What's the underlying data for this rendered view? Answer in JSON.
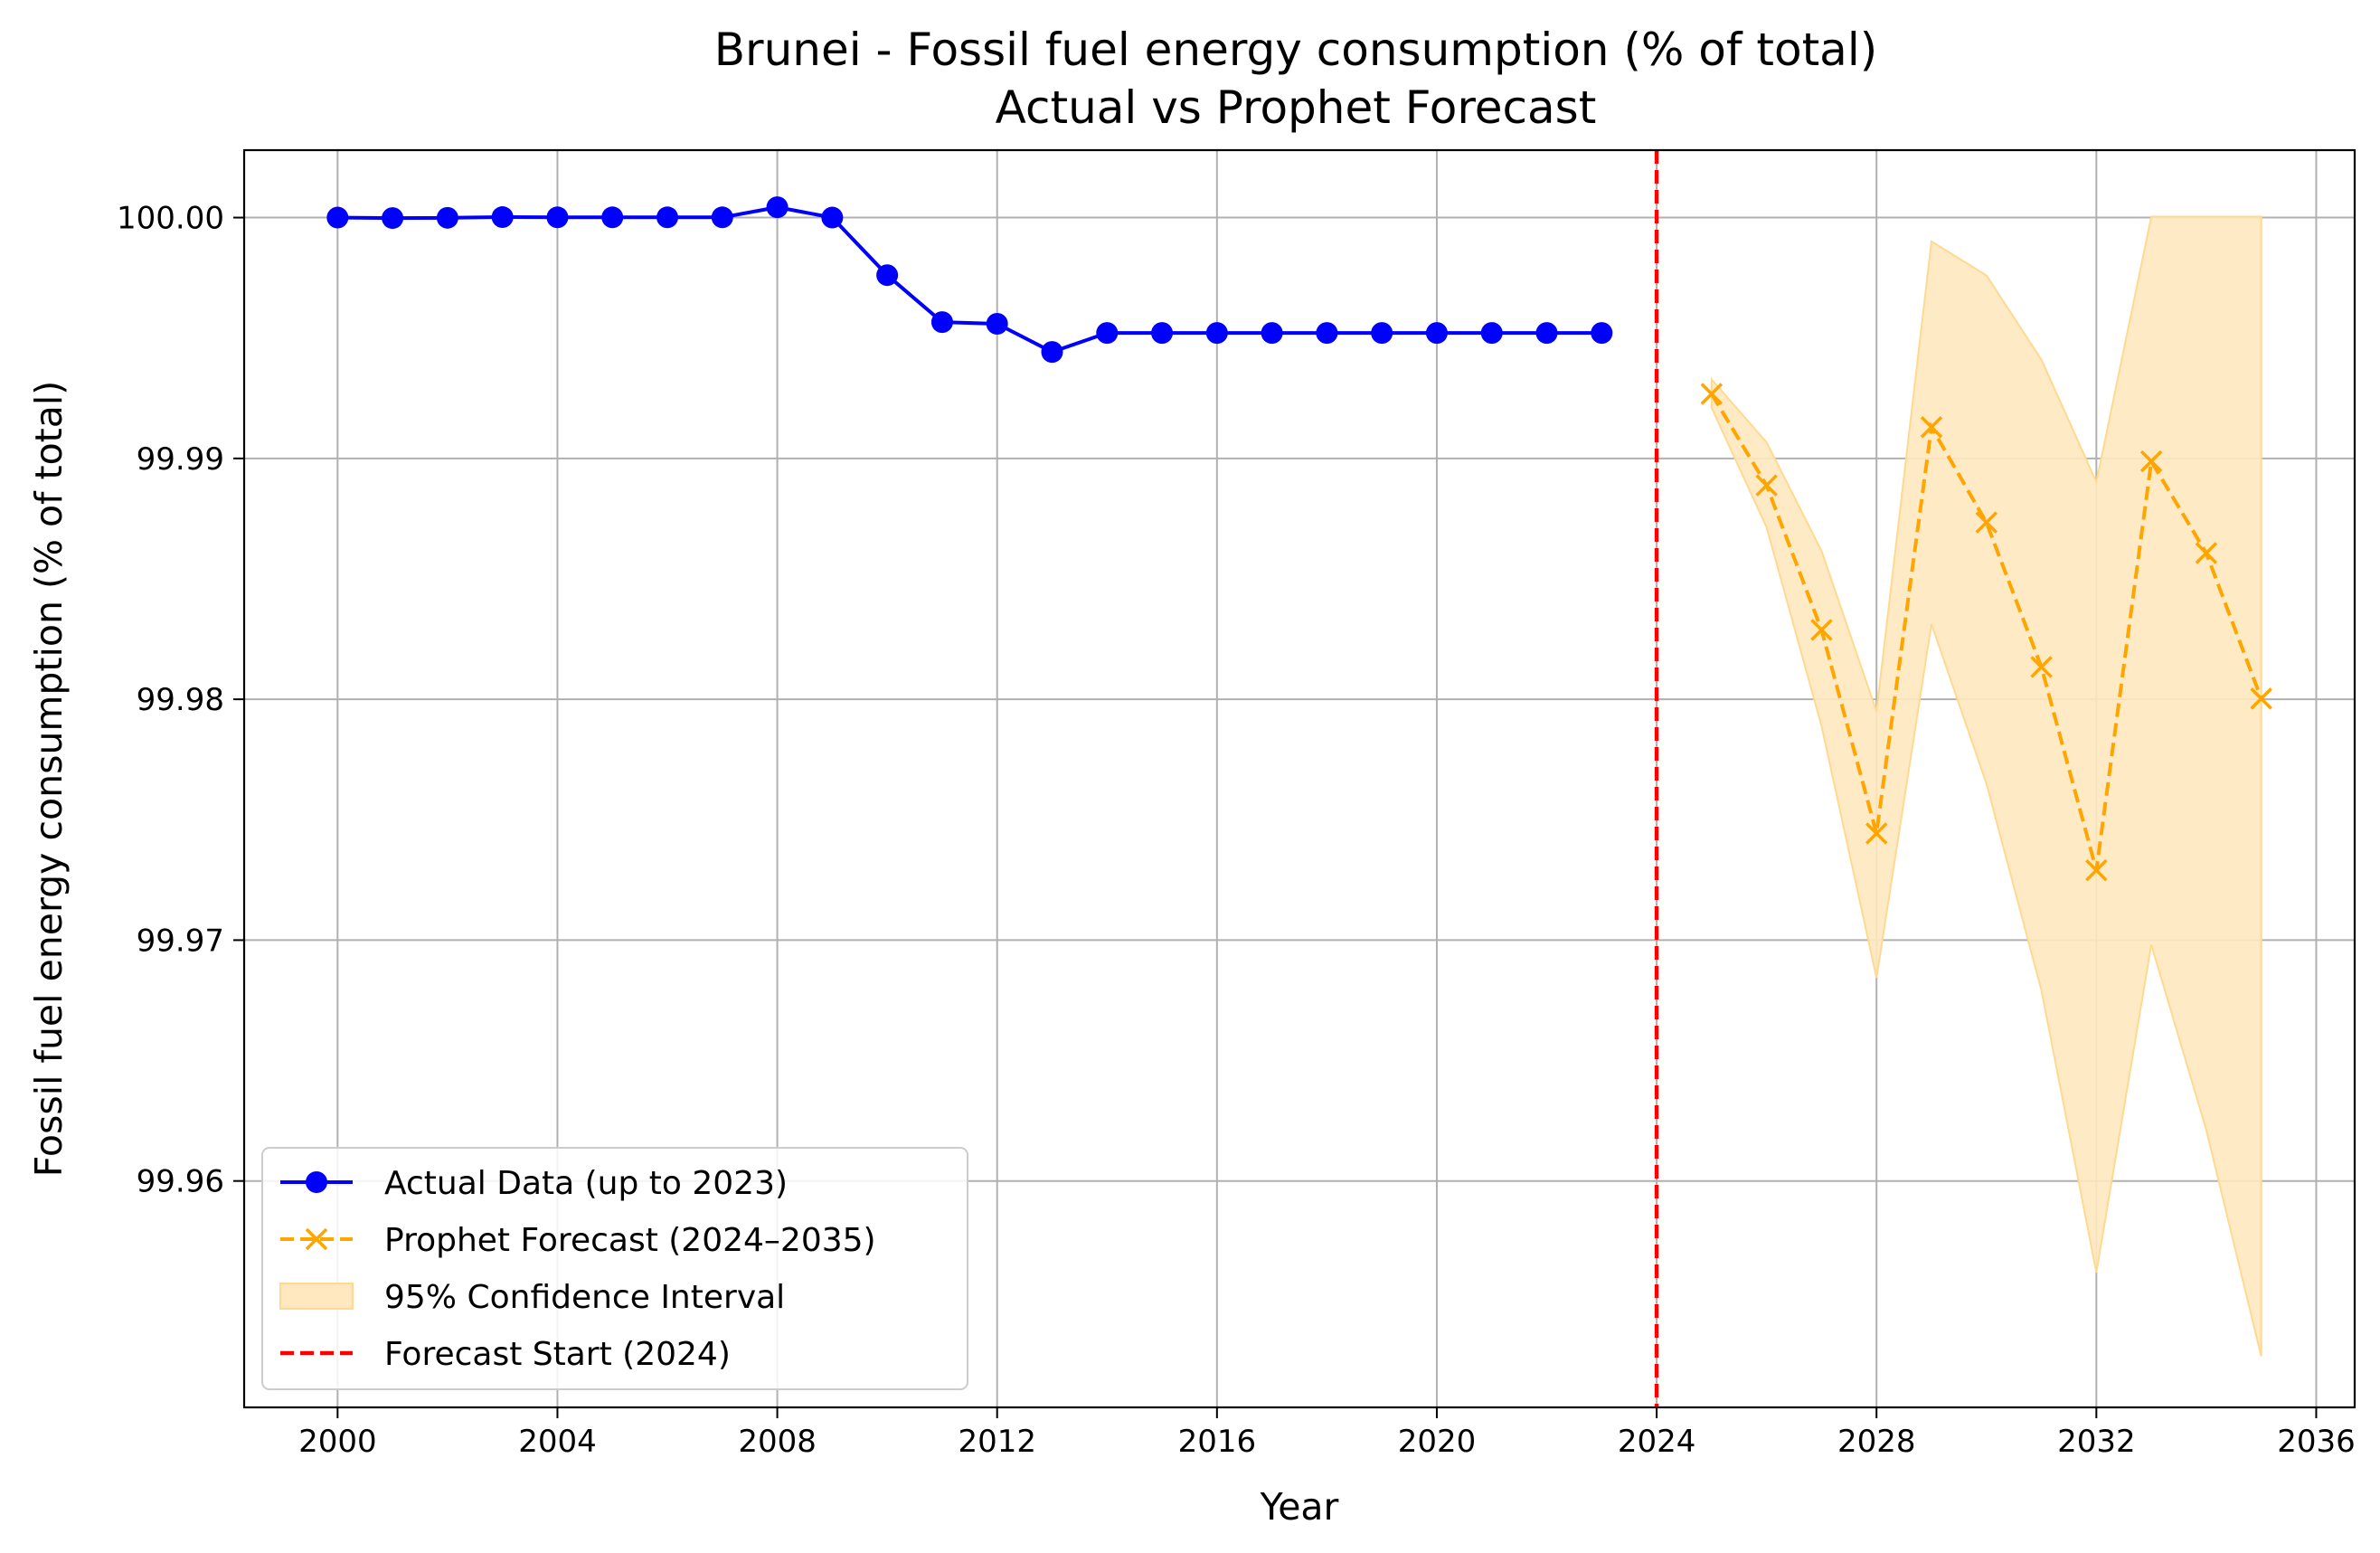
{
  "chart_data": {
    "type": "line",
    "title": "Brunei - Fossil fuel energy consumption (% of total)",
    "subtitle": "Actual vs Prophet Forecast",
    "xlabel": "Year",
    "ylabel": "Fossil fuel energy consumption (% of total)",
    "xlim": [
      1998.3,
      2036.7
    ],
    "ylim": [
      99.9506,
      100.0028
    ],
    "x_ticks": [
      2000,
      2004,
      2008,
      2012,
      2016,
      2020,
      2024,
      2028,
      2032,
      2036
    ],
    "y_ticks": [
      99.96,
      99.97,
      99.98,
      99.99,
      100.0
    ],
    "y_tick_labels": [
      "99.96",
      "99.97",
      "99.98",
      "99.99",
      "100.00"
    ],
    "grid": true,
    "legend_position": "lower-left",
    "colors": {
      "actual": "#0000ff",
      "forecast": "#ffa500",
      "confidence": "#ffe8c0",
      "confidence_edge": "#ffd990",
      "forecast_start": "#ff0000",
      "grid": "#b0b0b0"
    },
    "series": [
      {
        "name": "Actual Data (up to 2023)",
        "style": "solid-circle",
        "x": [
          2000,
          2001,
          2002,
          2003,
          2004,
          2005,
          2006,
          2007,
          2008,
          2009,
          2010,
          2011,
          2012,
          2013,
          2014,
          2015,
          2016,
          2017,
          2018,
          2019,
          2020,
          2021,
          2022,
          2023
        ],
        "y": [
          100.0,
          99.99998,
          99.99999,
          100.00002,
          100.00001,
          100.00001,
          100.00001,
          100.00001,
          100.00043,
          100.0,
          99.99761,
          99.99566,
          99.99559,
          99.99442,
          99.99521,
          99.99521,
          99.99521,
          99.99521,
          99.99521,
          99.99521,
          99.99521,
          99.99521,
          99.99521,
          99.99521
        ]
      },
      {
        "name": "Prophet Forecast (2024–2035)",
        "style": "dashed-x",
        "x": [
          2025,
          2026,
          2027,
          2028,
          2029,
          2030,
          2031,
          2032,
          2033,
          2034,
          2035
        ],
        "y": [
          99.99268,
          99.98888,
          99.98288,
          99.97443,
          99.9913,
          99.98734,
          99.98134,
          99.9729,
          99.98988,
          99.98607,
          99.98003
        ]
      }
    ],
    "confidence_interval": {
      "name": "95% Confidence Interval",
      "x": [
        2025,
        2026,
        2027,
        2028,
        2029,
        2030,
        2031,
        2032,
        2033,
        2034,
        2035
      ],
      "lower": [
        99.9921,
        99.98714,
        99.97889,
        99.96844,
        99.98312,
        99.9765,
        99.96792,
        99.9562,
        99.96981,
        99.96212,
        99.95272
      ],
      "upper": [
        99.99328,
        99.99067,
        99.98616,
        99.97949,
        99.99901,
        99.9976,
        99.9941,
        99.98902,
        100.00004,
        100.00004,
        100.00004
      ]
    },
    "vline": {
      "name": "Forecast Start (2024)",
      "x": 2024
    }
  }
}
